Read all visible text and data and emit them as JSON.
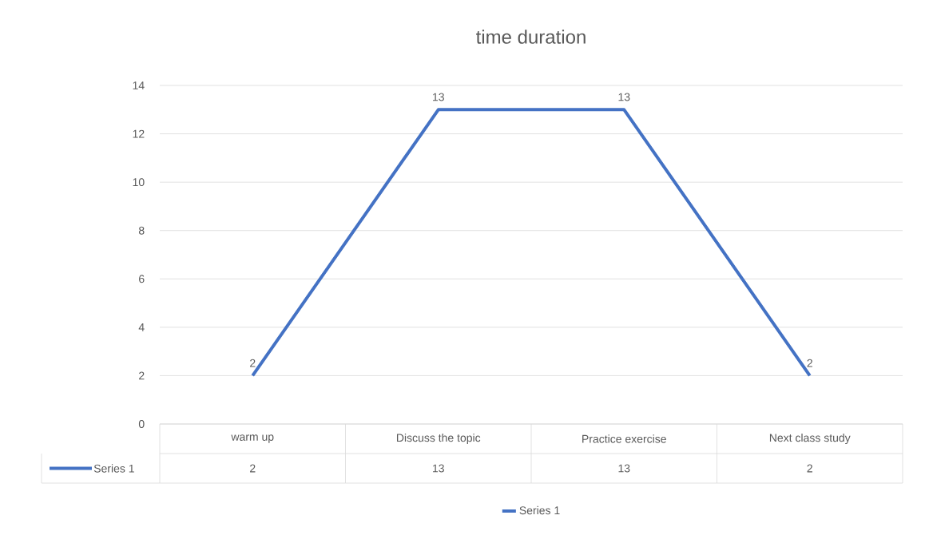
{
  "chart_data": {
    "type": "line",
    "title": "time duration",
    "categories": [
      "warm up",
      "Discuss the topic",
      "Practice exercise",
      "Next class study"
    ],
    "series": [
      {
        "name": "Series 1",
        "color": "#4472c4",
        "values": [
          2,
          13,
          13,
          2
        ],
        "value_labels": [
          "2",
          "13",
          "13",
          "2"
        ]
      }
    ],
    "ylim": [
      0,
      14
    ],
    "yticks": [
      0,
      2,
      4,
      6,
      8,
      10,
      12,
      14
    ],
    "grid": "y",
    "legend": "bottom",
    "annotations": [
      "2",
      "13",
      "13",
      "2"
    ]
  }
}
